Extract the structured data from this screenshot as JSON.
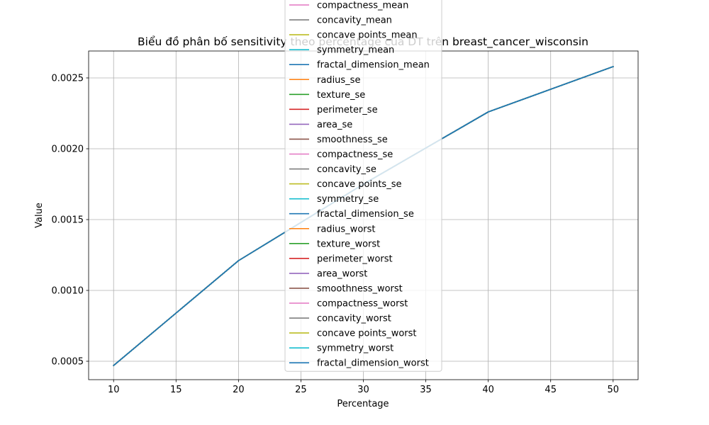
{
  "chart_data": {
    "type": "line",
    "title": "Biểu đồ phân bố sensitivity theo percentage của DT trên breast_cancer_wisconsin",
    "xlabel": "Percentage",
    "ylabel": "Value",
    "xlim": [
      8,
      52
    ],
    "ylim": [
      0.00037,
      0.00269
    ],
    "xticks": [
      10,
      15,
      20,
      25,
      30,
      35,
      40,
      45,
      50
    ],
    "xtick_labels": [
      "10",
      "15",
      "20",
      "25",
      "30",
      "35",
      "40",
      "45",
      "50"
    ],
    "yticks": [
      0.0005,
      0.001,
      0.0015,
      0.002,
      0.0025
    ],
    "ytick_labels": [
      "0.0005",
      "0.0010",
      "0.0015",
      "0.0020",
      "0.0025"
    ],
    "grid": true,
    "legend_position": "upper-center",
    "x": [
      10,
      20,
      30,
      40,
      50
    ],
    "series": [
      {
        "name": "compactness_mean",
        "color": "#e377c2",
        "values": [
          0.00047,
          0.00121,
          0.00175,
          0.00226,
          0.00258
        ]
      },
      {
        "name": "concavity_mean",
        "color": "#7f7f7f",
        "values": [
          0.00047,
          0.00121,
          0.00175,
          0.00226,
          0.00258
        ]
      },
      {
        "name": "concave points_mean",
        "color": "#bcbd22",
        "values": [
          0.00047,
          0.00121,
          0.00175,
          0.00226,
          0.00258
        ]
      },
      {
        "name": "symmetry_mean",
        "color": "#17becf",
        "values": [
          0.00047,
          0.00121,
          0.00175,
          0.00226,
          0.00258
        ]
      },
      {
        "name": "fractal_dimension_mean",
        "color": "#1f77b4",
        "values": [
          0.00047,
          0.00121,
          0.00175,
          0.00226,
          0.00258
        ]
      },
      {
        "name": "radius_se",
        "color": "#ff7f0e",
        "values": [
          0.00047,
          0.00121,
          0.00175,
          0.00226,
          0.00258
        ]
      },
      {
        "name": "texture_se",
        "color": "#2ca02c",
        "values": [
          0.00047,
          0.00121,
          0.00175,
          0.00226,
          0.00258
        ]
      },
      {
        "name": "perimeter_se",
        "color": "#d62728",
        "values": [
          0.00047,
          0.00121,
          0.00175,
          0.00226,
          0.00258
        ]
      },
      {
        "name": "area_se",
        "color": "#9467bd",
        "values": [
          0.00047,
          0.00121,
          0.00175,
          0.00226,
          0.00258
        ]
      },
      {
        "name": "smoothness_se",
        "color": "#8c564b",
        "values": [
          0.00047,
          0.00121,
          0.00175,
          0.00226,
          0.00258
        ]
      },
      {
        "name": "compactness_se",
        "color": "#e377c2",
        "values": [
          0.00047,
          0.00121,
          0.00175,
          0.00226,
          0.00258
        ]
      },
      {
        "name": "concavity_se",
        "color": "#7f7f7f",
        "values": [
          0.00047,
          0.00121,
          0.00175,
          0.00226,
          0.00258
        ]
      },
      {
        "name": "concave points_se",
        "color": "#bcbd22",
        "values": [
          0.00047,
          0.00121,
          0.00175,
          0.00226,
          0.00258
        ]
      },
      {
        "name": "symmetry_se",
        "color": "#17becf",
        "values": [
          0.00047,
          0.00121,
          0.00175,
          0.00226,
          0.00258
        ]
      },
      {
        "name": "fractal_dimension_se",
        "color": "#1f77b4",
        "values": [
          0.00047,
          0.00121,
          0.00175,
          0.00226,
          0.00258
        ]
      },
      {
        "name": "radius_worst",
        "color": "#ff7f0e",
        "values": [
          0.00047,
          0.00121,
          0.00175,
          0.00226,
          0.00258
        ]
      },
      {
        "name": "texture_worst",
        "color": "#2ca02c",
        "values": [
          0.00047,
          0.00121,
          0.00175,
          0.00226,
          0.00258
        ]
      },
      {
        "name": "perimeter_worst",
        "color": "#d62728",
        "values": [
          0.00047,
          0.00121,
          0.00175,
          0.00226,
          0.00258
        ]
      },
      {
        "name": "area_worst",
        "color": "#9467bd",
        "values": [
          0.00047,
          0.00121,
          0.00175,
          0.00226,
          0.00258
        ]
      },
      {
        "name": "smoothness_worst",
        "color": "#8c564b",
        "values": [
          0.00047,
          0.00121,
          0.00175,
          0.00226,
          0.00258
        ]
      },
      {
        "name": "compactness_worst",
        "color": "#e377c2",
        "values": [
          0.00047,
          0.00121,
          0.00175,
          0.00226,
          0.00258
        ]
      },
      {
        "name": "concavity_worst",
        "color": "#7f7f7f",
        "values": [
          0.00047,
          0.00121,
          0.00175,
          0.00226,
          0.00258
        ]
      },
      {
        "name": "concave points_worst",
        "color": "#bcbd22",
        "values": [
          0.00047,
          0.00121,
          0.00175,
          0.00226,
          0.00258
        ]
      },
      {
        "name": "symmetry_worst",
        "color": "#17becf",
        "values": [
          0.00047,
          0.00121,
          0.00175,
          0.00226,
          0.00258
        ]
      },
      {
        "name": "fractal_dimension_worst",
        "color": "#1f77b4",
        "values": [
          0.00047,
          0.00121,
          0.00175,
          0.00226,
          0.00258
        ]
      }
    ]
  }
}
